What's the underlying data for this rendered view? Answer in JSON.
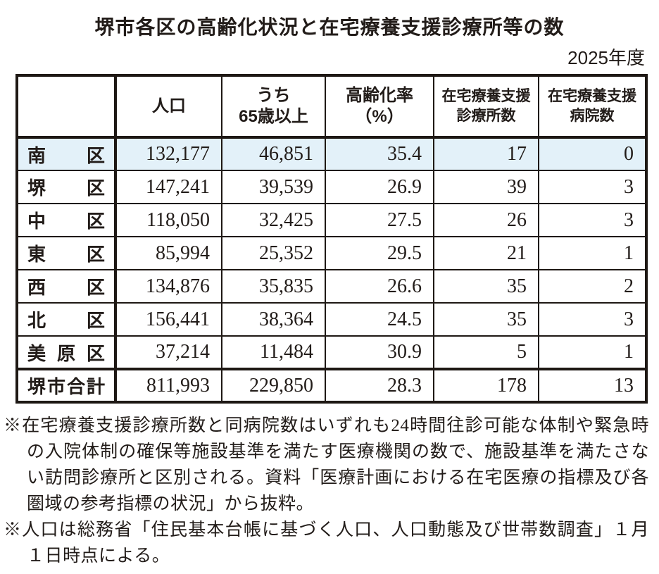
{
  "page": {
    "title": "堺市各区の高齢化状況と在宅療養支援診療所等の数",
    "fiscal_year": "2025年度"
  },
  "table": {
    "header": {
      "ward": "",
      "population": "人口",
      "over65": [
        "うち",
        "65歳以上"
      ],
      "aging_rate": [
        "高齢化率",
        "（%）"
      ],
      "clinics": [
        "在宅療養支援",
        "診療所数"
      ],
      "hospitals": [
        "在宅療養支援",
        "病院数"
      ]
    },
    "rows": [
      {
        "ward": "南区",
        "population": "132,177",
        "over65": "46,851",
        "aging_rate": "35.4",
        "clinics": "17",
        "hospitals": "0"
      },
      {
        "ward": "堺区",
        "population": "147,241",
        "over65": "39,539",
        "aging_rate": "26.9",
        "clinics": "39",
        "hospitals": "3"
      },
      {
        "ward": "中区",
        "population": "118,050",
        "over65": "32,425",
        "aging_rate": "27.5",
        "clinics": "26",
        "hospitals": "3"
      },
      {
        "ward": "東区",
        "population": "85,994",
        "over65": "25,352",
        "aging_rate": "29.5",
        "clinics": "21",
        "hospitals": "1"
      },
      {
        "ward": "西区",
        "population": "134,876",
        "over65": "35,835",
        "aging_rate": "26.6",
        "clinics": "35",
        "hospitals": "2"
      },
      {
        "ward": "北区",
        "population": "156,441",
        "over65": "38,364",
        "aging_rate": "24.5",
        "clinics": "35",
        "hospitals": "3"
      },
      {
        "ward": "美原区",
        "population": "37,214",
        "over65": "11,484",
        "aging_rate": "30.9",
        "clinics": "5",
        "hospitals": "1"
      }
    ],
    "total": {
      "ward": "堺市合計",
      "population": "811,993",
      "over65": "229,850",
      "aging_rate": "28.3",
      "clinics": "178",
      "hospitals": "13"
    }
  },
  "footnotes": [
    "※在宅療養支援診療所数と同病院数はいずれも24時間往診可能な体制や緊急時の入院体制の確保等施設基準を満たす医療機関の数で、施設基準を満たさない訪問診療所と区別される。資料「医療計画における在宅医療の指標及び各圏域の参考指標の状況」から抜粋。",
    "※人口は総務省「住民基本台帳に基づく人口、人口動態及び世帯数調査」１月１日時点による。"
  ],
  "colors": {
    "highlight_row_bg": "#e3f1f9",
    "ink": "#221c19",
    "border": "#1e1814"
  }
}
